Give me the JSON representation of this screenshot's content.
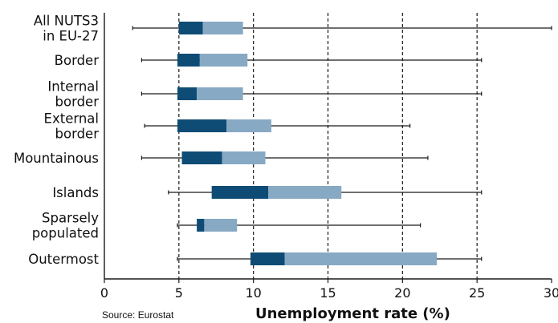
{
  "source_note": "Source: Eurostat",
  "chart_data": {
    "type": "boxplot",
    "title": "",
    "xlabel": "Unemployment rate (%)",
    "ylabel": "",
    "xlim": [
      0,
      30
    ],
    "xticks": [
      0,
      5,
      10,
      15,
      20,
      25,
      30
    ],
    "grid": "dashed vertical lines at 5, 10, 15, 20, 25",
    "colors": {
      "lower_box": "#0f4c75",
      "upper_box": "#87a9c4",
      "whisker": "#1a1a1a",
      "grid": "#1a1a1a"
    },
    "categories": [
      {
        "label": [
          "All NUTS3",
          "in EU-27"
        ],
        "min": 1.9,
        "q1": 5.0,
        "median": 6.6,
        "q3": 9.3,
        "max": 30.0
      },
      {
        "label": [
          "Border"
        ],
        "min": 2.5,
        "q1": 4.9,
        "median": 6.4,
        "q3": 9.6,
        "max": 25.3
      },
      {
        "label": [
          "Internal",
          "border"
        ],
        "min": 2.5,
        "q1": 4.9,
        "median": 6.2,
        "q3": 9.3,
        "max": 25.3
      },
      {
        "label": [
          "External",
          "border"
        ],
        "min": 2.7,
        "q1": 4.9,
        "median": 8.2,
        "q3": 11.2,
        "max": 20.5
      },
      {
        "label": [
          "Mountainous"
        ],
        "min": 2.5,
        "q1": 5.2,
        "median": 7.9,
        "q3": 10.8,
        "max": 21.7
      },
      {
        "label": [
          "Islands"
        ],
        "min": 4.3,
        "q1": 7.2,
        "median": 11.0,
        "q3": 15.9,
        "max": 25.3
      },
      {
        "label": [
          "Sparsely",
          "populated"
        ],
        "min": 4.9,
        "q1": 6.2,
        "median": 6.7,
        "q3": 8.9,
        "max": 21.2
      },
      {
        "label": [
          "Outermost"
        ],
        "min": 4.9,
        "q1": 9.8,
        "median": 12.1,
        "q3": 22.3,
        "max": 25.3
      }
    ]
  }
}
